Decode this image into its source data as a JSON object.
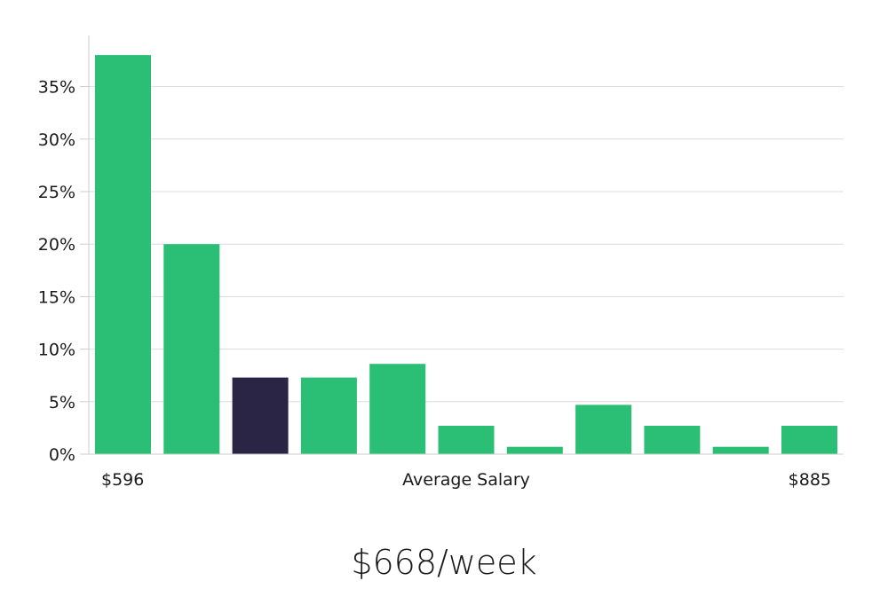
{
  "chart_data": {
    "type": "bar",
    "title": "",
    "xlabel": "Average Salary",
    "ylabel": "",
    "x_min_label": "$596",
    "x_max_label": "$885",
    "categories": [
      "1",
      "2",
      "3",
      "4",
      "5",
      "6",
      "7",
      "8",
      "9",
      "10",
      "11"
    ],
    "values": [
      38,
      20,
      7.3,
      7.3,
      8.6,
      2.7,
      0.7,
      4.7,
      2.7,
      0.7,
      2.7
    ],
    "highlight_index": 2,
    "y_ticks": [
      "0%",
      "5%",
      "10%",
      "15%",
      "20%",
      "25%",
      "30%",
      "35%"
    ],
    "ylim": [
      0,
      40
    ],
    "grid": true,
    "colors": {
      "bar": "#2bbf76",
      "highlight": "#2a2545",
      "grid": "#dcdcdc",
      "axis": "#cccccc"
    }
  },
  "headline": "$668/week"
}
